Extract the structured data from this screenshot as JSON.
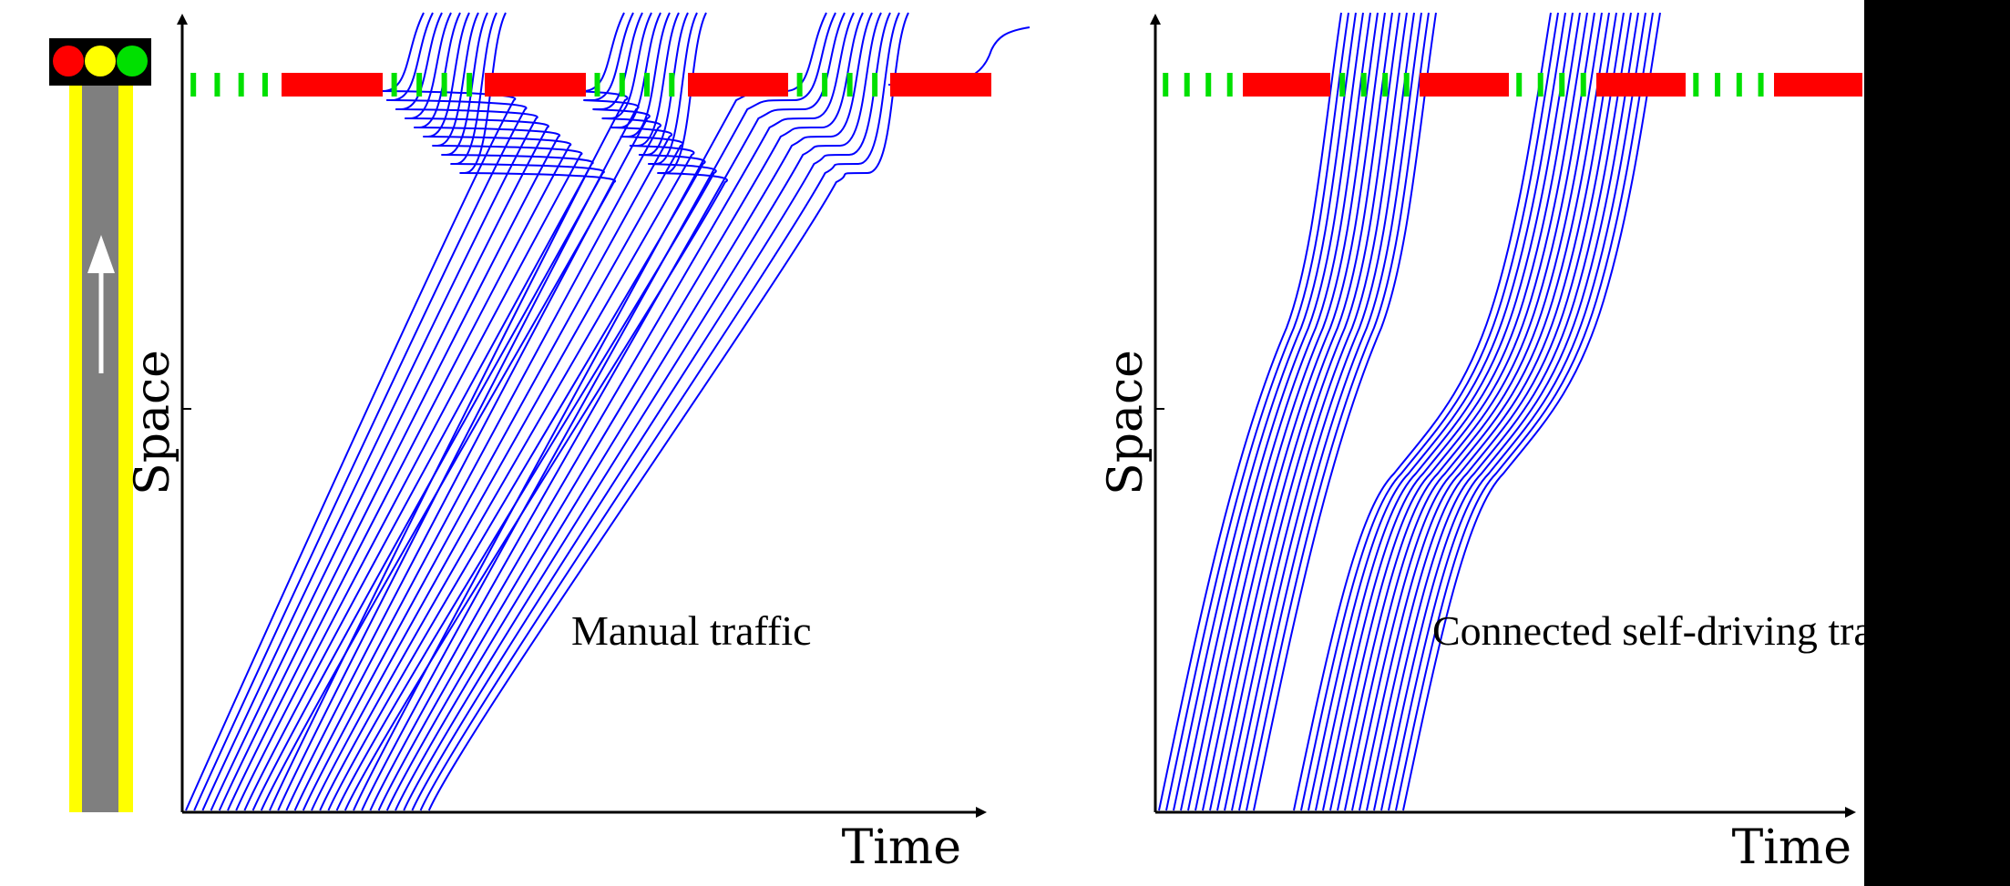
{
  "colors": {
    "trajectory": "#0000ff",
    "green_phase": "#00e000",
    "red_phase": "#ff0000",
    "road": "#7f7f7f",
    "road_edge": "#ffff00",
    "light_red": "#ff0000",
    "light_yellow": "#ffff00",
    "light_green": "#00e000"
  },
  "traffic_light_icon": {
    "lamps": [
      "red",
      "yellow",
      "green"
    ]
  },
  "road_icon": {
    "arrow": "up-arrow-icon"
  },
  "panels": [
    {
      "id": "manual",
      "annotation": "Manual traffic",
      "xlabel": "Time",
      "ylabel": "Space",
      "signal_sequence": [
        "green",
        "red",
        "green",
        "red",
        "green",
        "red",
        "green",
        "red"
      ],
      "vehicle_count": 30,
      "behavior": "stop-and-go at red phases"
    },
    {
      "id": "connected",
      "annotation": "Connected self-driving traf",
      "xlabel": "Time",
      "ylabel": "Space",
      "signal_sequence": [
        "green",
        "red",
        "green",
        "red",
        "green",
        "red",
        "green",
        "red"
      ],
      "vehicle_count": 30,
      "behavior": "platoons pass during green phases without stopping"
    }
  ]
}
